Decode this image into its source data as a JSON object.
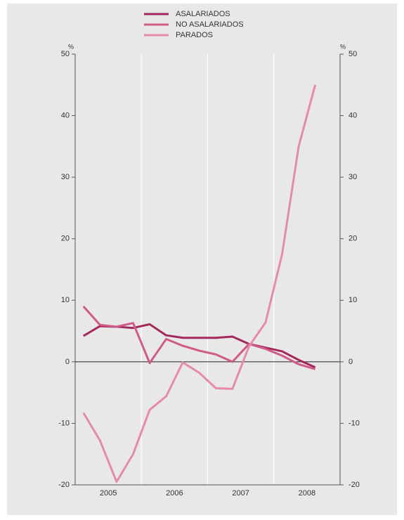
{
  "chart_data": {
    "type": "line",
    "x": [
      2005.125,
      2005.375,
      2005.625,
      2005.875,
      2006.125,
      2006.375,
      2006.625,
      2006.875,
      2007.125,
      2007.375,
      2007.625,
      2007.875,
      2008.125,
      2008.375,
      2008.625
    ],
    "series": [
      {
        "name": "ASALARIADOS",
        "color": "#a3295c",
        "values": [
          4.2,
          5.8,
          5.7,
          5.5,
          6.1,
          4.3,
          3.9,
          3.9,
          3.9,
          4.1,
          2.9,
          2.3,
          1.7,
          0.3,
          -0.9
        ]
      },
      {
        "name": "NO ASALARIADOS",
        "color": "#cf5b89",
        "values": [
          9,
          6,
          5.7,
          6.3,
          -0.2,
          3.7,
          2.6,
          1.8,
          1.2,
          0,
          2.9,
          2.1,
          1,
          -0.4,
          -1.2
        ]
      },
      {
        "name": "PARADOS",
        "color": "#e58ba9",
        "values": [
          -8.3,
          -12.8,
          -19.5,
          -15,
          -7.8,
          -5.6,
          -0.1,
          -1.8,
          -4.3,
          -4.4,
          2.5,
          6.4,
          17.5,
          35,
          45
        ]
      }
    ],
    "xlim": [
      2005,
      2009
    ],
    "xticks": [
      {
        "value": 2005.5,
        "label": "2005"
      },
      {
        "value": 2006.5,
        "label": "2006"
      },
      {
        "value": 2007.5,
        "label": "2007"
      },
      {
        "value": 2008.5,
        "label": "2008"
      }
    ],
    "xgrid": [
      2006,
      2007,
      2008
    ],
    "ylabel": "%",
    "y2label": "%",
    "ylim": [
      -20,
      50
    ],
    "yticks": [
      -20,
      -10,
      0,
      10,
      20,
      30,
      40,
      50
    ],
    "y2lim": [
      -20,
      50
    ],
    "y2ticks": [
      -20,
      -10,
      0,
      10,
      20,
      30,
      40,
      50
    ],
    "legend": "top"
  }
}
